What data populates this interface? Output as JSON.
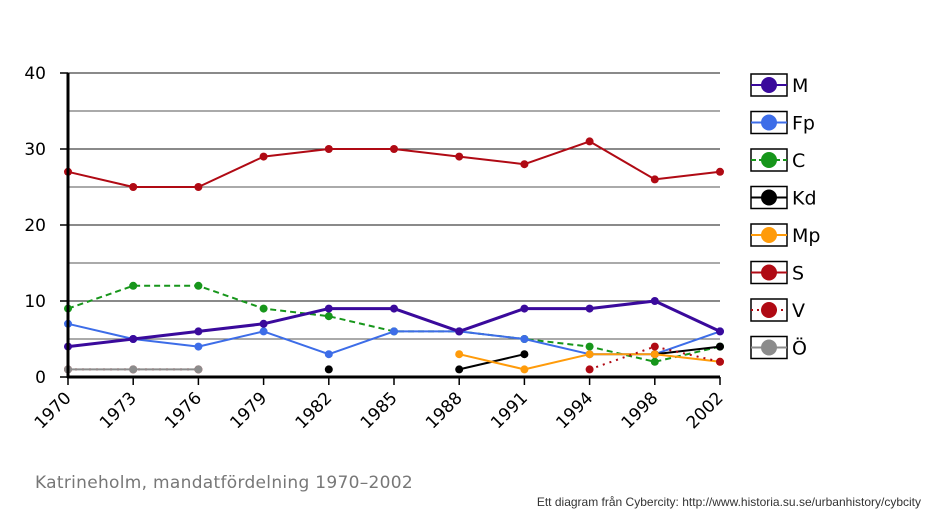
{
  "caption": "Katrineholm, mandatfördelning 1970–2002",
  "credit": "Ett diagram från Cybercity: http://www.historia.su.se/urbanhistory/cybcity",
  "chart_data": {
    "type": "line",
    "title": "",
    "xlabel": "",
    "ylabel": "",
    "ylim": [
      0,
      40
    ],
    "yticks": [
      0,
      10,
      20,
      30,
      40
    ],
    "grid": true,
    "legend_position": "right",
    "categories": [
      "1970",
      "1973",
      "1976",
      "1979",
      "1982",
      "1985",
      "1988",
      "1991",
      "1994",
      "1998",
      "2002"
    ],
    "series": [
      {
        "name": "S",
        "color": "#b00a14",
        "style": "solid",
        "values": [
          27,
          25,
          25,
          29,
          30,
          30,
          29,
          28,
          31,
          26,
          27
        ]
      },
      {
        "name": "C",
        "color": "#17961b",
        "style": "dashed",
        "values": [
          9,
          12,
          12,
          9,
          8,
          6,
          6,
          5,
          4,
          2,
          4
        ]
      },
      {
        "name": "Fp",
        "color": "#3d6de8",
        "style": "solid",
        "values": [
          7,
          5,
          4,
          6,
          3,
          6,
          6,
          5,
          3,
          3,
          6
        ]
      },
      {
        "name": "M",
        "color": "#3a0a9c",
        "style": "solid",
        "values": [
          4,
          5,
          6,
          7,
          9,
          9,
          6,
          9,
          9,
          10,
          6
        ]
      },
      {
        "name": "Kd",
        "color": "#000000",
        "style": "solid",
        "values": [
          null,
          null,
          null,
          null,
          1,
          null,
          1,
          3,
          null,
          3,
          4
        ]
      },
      {
        "name": "Mp",
        "color": "#ff9b0a",
        "style": "solid",
        "values": [
          null,
          null,
          null,
          null,
          null,
          null,
          3,
          1,
          3,
          3,
          2
        ]
      },
      {
        "name": "V",
        "color": "#b00a14",
        "style": "dotted",
        "values": [
          1,
          1,
          1,
          null,
          null,
          null,
          null,
          null,
          1,
          4,
          2
        ]
      },
      {
        "name": "Ö",
        "color": "#8c8c8c",
        "style": "solid",
        "values": [
          1,
          1,
          1,
          null,
          null,
          null,
          null,
          null,
          null,
          null,
          null
        ]
      }
    ],
    "legend": [
      {
        "name": "M",
        "color": "#3a0a9c",
        "style": "solid"
      },
      {
        "name": "Fp",
        "color": "#3d6de8",
        "style": "solid"
      },
      {
        "name": "C",
        "color": "#17961b",
        "style": "dashed"
      },
      {
        "name": "Kd",
        "color": "#000000",
        "style": "solid"
      },
      {
        "name": "Mp",
        "color": "#ff9b0a",
        "style": "solid"
      },
      {
        "name": "S",
        "color": "#b00a14",
        "style": "solid"
      },
      {
        "name": "V",
        "color": "#b00a14",
        "style": "dotted"
      },
      {
        "name": "Ö",
        "color": "#8c8c8c",
        "style": "solid"
      }
    ]
  }
}
